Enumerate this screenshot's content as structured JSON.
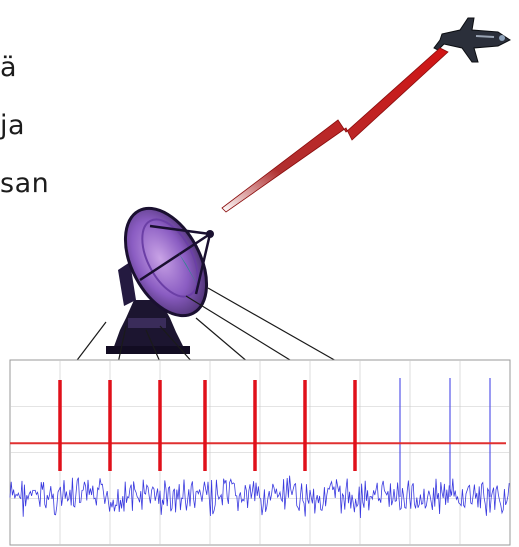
{
  "text_fragments": [
    "ä",
    "ja",
    "san"
  ],
  "icons": {
    "aircraft": "aircraft-icon",
    "radar": "radar-dish-icon",
    "beam": "lightning-beam-icon"
  },
  "colors": {
    "beam": "#d11414",
    "threshold": "#e03030",
    "detection": "#e0101a",
    "noise": "#3a3adf",
    "pulse": "#5656e8",
    "arrow": "#1a1a1a",
    "grid": "#c8c8c8"
  },
  "signal": {
    "threshold_level": 0.45,
    "detections": [
      0.1,
      0.2,
      0.3,
      0.39,
      0.49,
      0.59,
      0.69
    ],
    "undetected_pulses": [
      0.78,
      0.88,
      0.96
    ]
  }
}
